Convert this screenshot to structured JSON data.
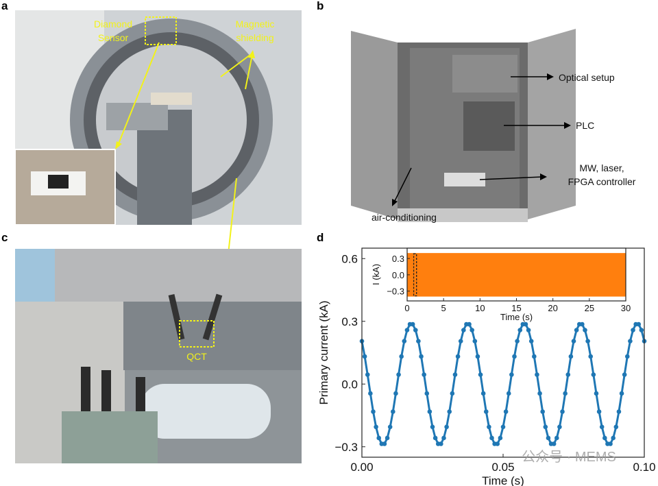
{
  "panels": {
    "a": {
      "label": "a",
      "annotations": [
        "Diamond",
        "Sensor",
        "Magnetic",
        "shielding"
      ]
    },
    "b": {
      "label": "b",
      "annotations": [
        "Optical setup",
        "PLC",
        "MW, laser,",
        "FPGA controller",
        "air-conditioning"
      ]
    },
    "c": {
      "label": "c",
      "annotations": [
        "QCT"
      ]
    },
    "d": {
      "label": "d"
    }
  },
  "colors": {
    "annotation_yellow": "#f2f21a",
    "main_series": "#1f77b4",
    "inset_series": "#ff7f0e"
  },
  "watermark": "公众号 · MEMS",
  "chart_data": [
    {
      "type": "line",
      "xlabel": "Time (s)",
      "ylabel": "Primary current (kA)",
      "xlim": [
        0,
        0.1
      ],
      "ylim": [
        -0.35,
        0.65
      ],
      "xticks": [
        "0.00",
        "0.05",
        "0.10"
      ],
      "xtick_values": [
        0,
        0.05,
        0.1
      ],
      "yticks": [
        "−0.3",
        "0.0",
        "0.3",
        "0.6"
      ],
      "ytick_values": [
        -0.3,
        0,
        0.3,
        0.6
      ],
      "markers": true,
      "grid": false,
      "x": [
        0,
        0.001,
        0.002,
        0.003,
        0.004,
        0.005,
        0.006,
        0.007,
        0.008,
        0.009,
        0.01,
        0.011,
        0.012,
        0.013,
        0.014,
        0.015,
        0.016,
        0.017,
        0.018,
        0.019,
        0.02,
        0.021,
        0.022,
        0.023,
        0.024,
        0.025,
        0.026,
        0.027,
        0.028,
        0.029,
        0.03,
        0.031,
        0.032,
        0.033,
        0.034,
        0.035,
        0.036,
        0.037,
        0.038,
        0.039,
        0.04,
        0.041,
        0.042,
        0.043,
        0.044,
        0.045,
        0.046,
        0.047,
        0.048,
        0.049,
        0.05,
        0.051,
        0.052,
        0.053,
        0.054,
        0.055,
        0.056,
        0.057,
        0.058,
        0.059,
        0.06,
        0.061,
        0.062,
        0.063,
        0.064,
        0.065,
        0.066,
        0.067,
        0.068,
        0.069,
        0.07,
        0.071,
        0.072,
        0.073,
        0.074,
        0.075,
        0.076,
        0.077,
        0.078,
        0.079,
        0.08,
        0.081,
        0.082,
        0.083,
        0.084,
        0.085,
        0.086,
        0.087,
        0.088,
        0.089,
        0.09,
        0.091,
        0.092,
        0.093,
        0.094,
        0.095,
        0.096,
        0.097,
        0.098,
        0.099,
        0.1
      ],
      "y": [
        0.205,
        0.132,
        0.045,
        -0.045,
        -0.132,
        -0.205,
        -0.258,
        -0.286,
        -0.286,
        -0.258,
        -0.205,
        -0.132,
        -0.045,
        0.045,
        0.132,
        0.205,
        0.258,
        0.286,
        0.286,
        0.258,
        0.205,
        0.132,
        0.045,
        -0.045,
        -0.132,
        -0.205,
        -0.258,
        -0.286,
        -0.286,
        -0.258,
        -0.205,
        -0.132,
        -0.045,
        0.045,
        0.132,
        0.205,
        0.258,
        0.286,
        0.286,
        0.258,
        0.205,
        0.132,
        0.045,
        -0.045,
        -0.132,
        -0.205,
        -0.258,
        -0.286,
        -0.286,
        -0.258,
        -0.205,
        -0.132,
        -0.045,
        0.045,
        0.132,
        0.205,
        0.258,
        0.286,
        0.286,
        0.258,
        0.205,
        0.132,
        0.045,
        -0.045,
        -0.132,
        -0.205,
        -0.258,
        -0.286,
        -0.286,
        -0.258,
        -0.205,
        -0.132,
        -0.045,
        0.045,
        0.132,
        0.205,
        0.258,
        0.286,
        0.286,
        0.258,
        0.205,
        0.132,
        0.045,
        -0.045,
        -0.132,
        -0.205,
        -0.258,
        -0.286,
        -0.286,
        -0.258,
        -0.205,
        -0.132,
        -0.045,
        0.045,
        0.132,
        0.205,
        0.258,
        0.286,
        0.286,
        0.258,
        0.205
      ]
    },
    {
      "type": "area",
      "xlabel": "Time (s)",
      "ylabel": "I (kA)",
      "xlim": [
        0,
        30
      ],
      "ylim": [
        -0.48,
        0.49
      ],
      "xticks": [
        "0",
        "5",
        "10",
        "15",
        "20",
        "25",
        "30"
      ],
      "xtick_values": [
        0,
        5,
        10,
        15,
        20,
        25,
        30
      ],
      "yticks": [
        "−0.3",
        "0.0",
        "0.3"
      ],
      "ytick_values": [
        -0.3,
        0,
        0.3
      ],
      "envelope": [
        -0.4,
        0.4
      ],
      "highlight_window": [
        0.9,
        1.1
      ]
    }
  ]
}
